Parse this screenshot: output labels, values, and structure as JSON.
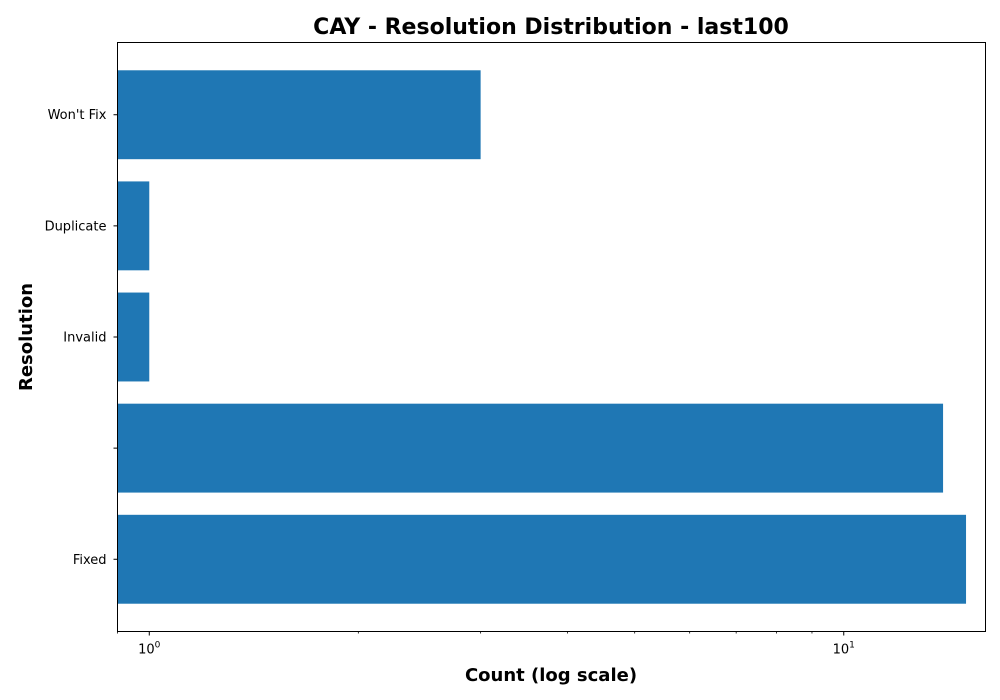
{
  "chart_data": {
    "type": "bar",
    "orientation": "horizontal",
    "title": "CAY - Resolution Distribution - last100",
    "xlabel": "Count (log scale)",
    "ylabel": "Resolution",
    "x_scale": "log",
    "xlim": [
      0.9,
      16
    ],
    "x_ticks": [
      {
        "value": 1,
        "base": "10",
        "exp": "0"
      },
      {
        "value": 10,
        "base": "10",
        "exp": "1"
      }
    ],
    "categories": [
      "Fixed",
      "",
      "Invalid",
      "Duplicate",
      "Won't Fix"
    ],
    "values": [
      15,
      13.9,
      1,
      1,
      3
    ],
    "bar_color": "#1f77b4",
    "grid": false,
    "legend": "none"
  }
}
